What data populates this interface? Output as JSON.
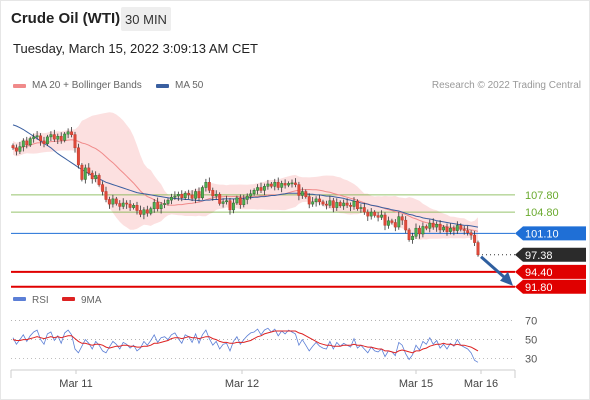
{
  "header": {
    "title": "Crude Oil (WTI)",
    "timeframe": "30 MIN",
    "datetime": "Tuesday, March 15, 2022 3:09:13 AM CET"
  },
  "legend": {
    "items": [
      {
        "label": "MA 20 + Bollinger Bands",
        "color": "#f08a8a"
      },
      {
        "label": "MA 50",
        "color": "#3a5fa0"
      }
    ],
    "source": "Research © 2022 Trading Central"
  },
  "chart_data": [
    {
      "type": "candlestick",
      "title": "Crude Oil (WTI)",
      "timeframe": "30 MIN",
      "ylim": [
        89.5,
        125.2
      ],
      "x_tick_labels": [
        "Mar 11",
        "Mar 12",
        "Mar 15",
        "Mar 16"
      ],
      "levels": [
        {
          "label": "107.80",
          "value": 107.8,
          "color": "#6aaa2e",
          "kind": "resistance"
        },
        {
          "label": "104.80",
          "value": 104.8,
          "color": "#6aaa2e",
          "kind": "resistance"
        },
        {
          "label": "101.10",
          "value": 101.1,
          "color": "#1f6fd6",
          "kind": "pivot"
        },
        {
          "label": "97.38",
          "value": 97.38,
          "color": "#222222",
          "kind": "last"
        },
        {
          "label": "94.40",
          "value": 94.4,
          "color": "#e00000",
          "kind": "support"
        },
        {
          "label": "91.80",
          "value": 91.8,
          "color": "#e00000",
          "kind": "support"
        }
      ],
      "arrow": {
        "from": 97.38,
        "to": 91.8,
        "color": "#2f5f9f"
      },
      "series": [
        {
          "name": "MA 20 + Bollinger Bands",
          "color": "#f08a8a"
        },
        {
          "name": "MA 50",
          "color": "#3a5fa0"
        }
      ],
      "close": [
        116.0,
        115.4,
        116.2,
        117.2,
        116.5,
        117.6,
        117.9,
        118.1,
        117.2,
        116.7,
        117.9,
        118.3,
        117.5,
        118.0,
        117.3,
        118.4,
        118.8,
        118.3,
        116.0,
        113.0,
        110.5,
        112.5,
        111.6,
        110.6,
        111.2,
        109.6,
        108.4,
        107.0,
        106.2,
        107.1,
        106.3,
        105.8,
        106.4,
        106.2,
        105.6,
        106.0,
        105.1,
        104.4,
        105.2,
        104.6,
        105.4,
        106.5,
        105.4,
        106.1,
        106.3,
        106.9,
        107.4,
        107.6,
        107.9,
        107.3,
        108.1,
        107.8,
        107.2,
        108.4,
        107.3,
        109.1,
        110.0,
        108.6,
        107.6,
        107.9,
        106.3,
        106.6,
        106.8,
        105.2,
        106.4,
        107.3,
        106.1,
        107.0,
        107.6,
        108.0,
        108.6,
        109.1,
        108.6,
        109.3,
        109.7,
        109.3,
        110.0,
        109.1,
        109.8,
        109.5,
        109.8,
        109.9,
        109.6,
        107.7,
        108.4,
        107.5,
        106.2,
        106.6,
        107.1,
        106.6,
        106.2,
        106.0,
        106.8,
        105.6,
        106.5,
        105.9,
        106.4,
        106.0,
        105.8,
        106.7,
        105.4,
        105.6,
        104.8,
        104.1,
        104.8,
        104.2,
        103.9,
        104.3,
        102.5,
        103.3,
        103.0,
        102.2,
        104.0,
        103.4,
        101.7,
        100.0,
        100.6,
        102.0,
        101.0,
        102.3,
        102.0,
        102.9,
        102.2,
        102.7,
        101.7,
        102.2,
        101.4,
        102.0,
        101.6,
        102.5,
        101.8,
        101.6,
        101.2,
        100.8,
        99.5,
        97.38
      ],
      "ma50": [
        120.0,
        119.8,
        119.5,
        119.2,
        118.8,
        118.4,
        118.0,
        117.6,
        117.2,
        116.8,
        116.4,
        116.0,
        115.5,
        115.0,
        114.6,
        114.2,
        113.8,
        113.4,
        113.0,
        112.6,
        112.2,
        111.9,
        111.5,
        111.2,
        110.9,
        110.6,
        110.3,
        110.0,
        109.8,
        109.6,
        109.4,
        109.2,
        109.0,
        108.8,
        108.6,
        108.4,
        108.2,
        108.1,
        108.0,
        107.9,
        107.8,
        107.7,
        107.6,
        107.5,
        107.4,
        107.3,
        107.2,
        107.2,
        107.1,
        107.1,
        107.0,
        107.0,
        106.9,
        106.9,
        106.8,
        106.8,
        106.9,
        106.9,
        107.0,
        107.0,
        107.0,
        107.1,
        107.1,
        107.1,
        107.1,
        107.1,
        107.2,
        107.2,
        107.3,
        107.3,
        107.4,
        107.4,
        107.5,
        107.5,
        107.6,
        107.7,
        107.7,
        107.8,
        107.9,
        108.0,
        108.1,
        108.1,
        108.1,
        108.1,
        108.0,
        108.0,
        107.9,
        107.9,
        107.8,
        107.8,
        107.7,
        107.6,
        107.6,
        107.5,
        107.4,
        107.3,
        107.2,
        107.0,
        106.9,
        106.7,
        106.6,
        106.4,
        106.3,
        106.2,
        106.0,
        105.9,
        105.8,
        105.6,
        105.5,
        105.4,
        105.2,
        105.1,
        105.0,
        104.8,
        104.6,
        104.4,
        104.3,
        104.1,
        104.0,
        103.8,
        103.7,
        103.6,
        103.5,
        103.3,
        103.2,
        103.1,
        103.0,
        102.9,
        102.8,
        102.7,
        102.6,
        102.5,
        102.5,
        102.4,
        102.3,
        102.2
      ]
    },
    {
      "type": "line",
      "title": "RSI",
      "ylim": [
        20,
        78
      ],
      "y_ticks": [
        70,
        50,
        30
      ],
      "x_tick_labels": [
        "Mar 11",
        "Mar 12",
        "Mar 15",
        "Mar 16"
      ],
      "series": [
        {
          "name": "RSI",
          "color": "#5c7fd6",
          "values": [
            52,
            45,
            50,
            55,
            48,
            54,
            58,
            60,
            50,
            45,
            56,
            58,
            49,
            54,
            46,
            57,
            60,
            55,
            40,
            36,
            43,
            50,
            46,
            40,
            48,
            44,
            38,
            36,
            42,
            48,
            45,
            40,
            47,
            45,
            41,
            44,
            38,
            41,
            48,
            44,
            49,
            55,
            47,
            52,
            53,
            50,
            55,
            57,
            51,
            46,
            55,
            53,
            47,
            56,
            46,
            55,
            60,
            51,
            44,
            48,
            40,
            45,
            46,
            38,
            48,
            53,
            45,
            50,
            54,
            57,
            58,
            61,
            55,
            60,
            62,
            58,
            61,
            54,
            59,
            56,
            60,
            58,
            56,
            44,
            50,
            44,
            38,
            43,
            47,
            43,
            41,
            40,
            48,
            40,
            47,
            43,
            46,
            44,
            42,
            51,
            41,
            44,
            40,
            36,
            42,
            38,
            37,
            40,
            32,
            38,
            37,
            33,
            47,
            44,
            35,
            29,
            34,
            44,
            39,
            48,
            45,
            52,
            45,
            49,
            41,
            45,
            40,
            46,
            43,
            50,
            44,
            42,
            40,
            36,
            28,
            26
          ]
        },
        {
          "name": "9MA",
          "color": "#dd2222",
          "values": [
            50,
            49,
            49,
            50,
            50,
            51,
            52,
            53,
            52,
            51,
            52,
            53,
            52,
            53,
            52,
            53,
            54,
            54,
            51,
            48,
            46,
            46,
            45,
            44,
            45,
            45,
            44,
            42,
            41,
            42,
            43,
            43,
            44,
            44,
            43,
            43,
            42,
            42,
            43,
            43,
            44,
            46,
            46,
            47,
            48,
            49,
            51,
            52,
            52,
            51,
            52,
            53,
            52,
            52,
            51,
            52,
            53,
            53,
            51,
            50,
            48,
            47,
            47,
            46,
            46,
            47,
            47,
            47,
            48,
            49,
            51,
            53,
            54,
            56,
            57,
            58,
            59,
            59,
            59,
            59,
            59,
            59,
            59,
            57,
            56,
            54,
            52,
            50,
            48,
            46,
            45,
            44,
            44,
            43,
            43,
            43,
            44,
            44,
            44,
            45,
            44,
            44,
            43,
            42,
            42,
            41,
            40,
            40,
            38,
            38,
            37,
            36,
            38,
            39,
            38,
            37,
            36,
            38,
            38,
            40,
            41,
            43,
            44,
            45,
            45,
            46,
            45,
            45,
            44,
            45,
            44,
            44,
            43,
            42,
            40,
            38
          ]
        }
      ]
    }
  ]
}
